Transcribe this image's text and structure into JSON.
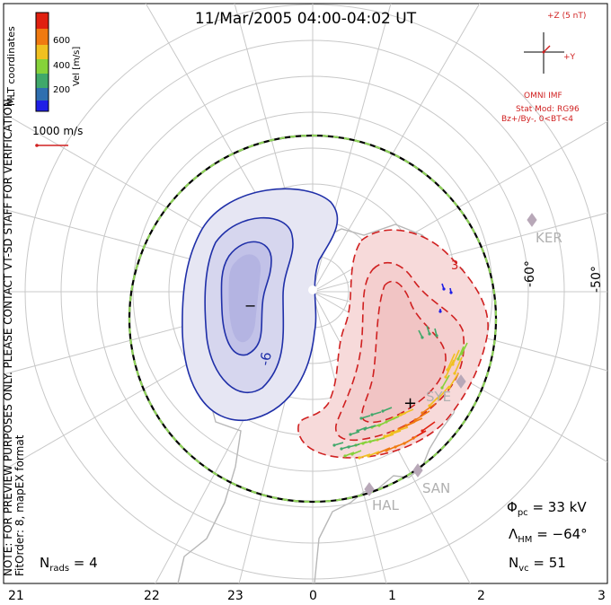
{
  "title": "11/Mar/2005 04:00-04:02 UT",
  "colorbar": {
    "ticks": [
      "600",
      "400",
      "200"
    ],
    "label": "Vel [m/s]",
    "colors": [
      "#1f1fe6",
      "#2f6fb0",
      "#40a86a",
      "#86d23a",
      "#f0c020",
      "#f07a10",
      "#e02010"
    ]
  },
  "coords_label": "MLT coordinates",
  "scale_vector": {
    "label": "1000 m/s"
  },
  "imf": {
    "axis_z": "+Z (5 nT)",
    "axis_y": "+Y",
    "source": "OMNI IMF",
    "model_line1": "Stat Mod: RG96",
    "model_line2": "Bz+/By-, 0<BT<4",
    "color": "#d02020"
  },
  "watermark": "NOTE: FOR PREVIEW PURPOSES ONLY. PLEASE CONTACT VT-SD STAFF FOR VERIFICATION.",
  "fit_order": "FitOrder: 8, mapEX format",
  "latitude_labels": [
    "-60°",
    "-50°"
  ],
  "radars": [
    "KER",
    "SYE",
    "SAN",
    "HAL"
  ],
  "contour_labels": {
    "neg": "-6",
    "neg_center": "−",
    "pos_center": "+",
    "pos": "3"
  },
  "stats": {
    "phi_pc": "Φ",
    "phi_pc_sub": "pc",
    "phi_pc_value": " = 33 kV",
    "lambda_hm": "Λ",
    "lambda_hm_sub": "HM",
    "lambda_hm_value": " = −64°",
    "n_vc": "N",
    "n_vc_sub": "vc",
    "n_vc_value": " = 51",
    "n_rads": "N",
    "n_rads_sub": "rads",
    "n_rads_value": " = 4"
  },
  "mlt_ticks": [
    "21",
    "22",
    "23",
    "0",
    "1",
    "2",
    "3"
  ]
}
